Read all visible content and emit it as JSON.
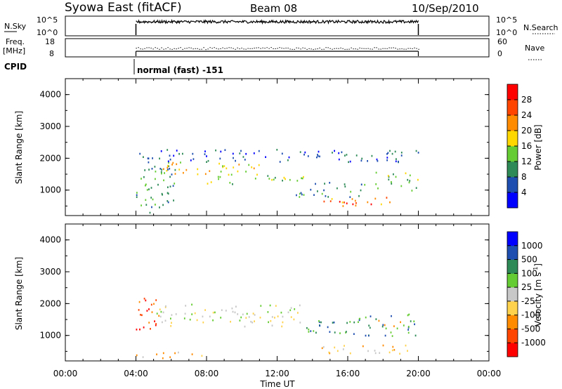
{
  "header": {
    "title": "Syowa East (fitACF)",
    "beam": "Beam 08",
    "date": "10/Sep/2010"
  },
  "status_panels": {
    "nsky_label": "N.Sky",
    "nsky_ticks": [
      "10^5",
      "10^0"
    ],
    "nsearch_label": "N.Search",
    "nsearch_ticks": [
      "10^5",
      "10^0"
    ],
    "freq_label_1": "Freq.",
    "freq_label_2": "[MHz]",
    "freq_ticks": [
      "18",
      "8"
    ],
    "nave_label": "Nave",
    "nave_ticks": [
      "60",
      "0"
    ],
    "cpid_label": "CPID",
    "cpid_text": "normal (fast) -151"
  },
  "colors": {
    "power_scale": [
      "#0000ff",
      "#1e4fb0",
      "#2e8b57",
      "#66cc33",
      "#ffd700",
      "#ff8c00",
      "#ff4500",
      "#ff0000"
    ],
    "velocity_scale": [
      "#ff0000",
      "#ff4500",
      "#ff8c00",
      "#ffd24d",
      "#c8c8c8",
      "#66cc33",
      "#2e8b57",
      "#1e4fb0",
      "#0000ff"
    ]
  },
  "chart_data": [
    {
      "type": "heatmap",
      "name": "power",
      "ylabel": "Slant Range [km]",
      "xlabel": "Time UT",
      "x_range_hours": [
        0,
        24
      ],
      "x_ticks": [
        "00:00",
        "04:00",
        "08:00",
        "12:00",
        "16:00",
        "20:00",
        "00:00"
      ],
      "ylim": [
        200,
        4500
      ],
      "y_ticks": [
        "1000",
        "2000",
        "3000",
        "4000"
      ],
      "data_time_range_hours": [
        4,
        20
      ],
      "colorbar": {
        "label": "Power [dB]",
        "range": [
          0,
          32
        ],
        "ticks": [
          "4",
          "8",
          "12",
          "16",
          "20",
          "24",
          "28"
        ]
      },
      "echo_regions": [
        {
          "t0": 4.0,
          "t1": 6.2,
          "r0": 300,
          "r1": 2300,
          "level": 2
        },
        {
          "t0": 4.0,
          "t1": 11.0,
          "r0": 1500,
          "r1": 1900,
          "level": 4
        },
        {
          "t0": 8.0,
          "t1": 13.5,
          "r0": 1200,
          "r1": 1500,
          "level": 3
        },
        {
          "t0": 13.0,
          "t1": 17.0,
          "r0": 800,
          "r1": 1300,
          "level": 2
        },
        {
          "t0": 14.5,
          "t1": 18.5,
          "r0": 500,
          "r1": 800,
          "level": 5
        },
        {
          "t0": 15.5,
          "t1": 17.5,
          "r0": 550,
          "r1": 700,
          "level": 7
        },
        {
          "t0": 17.5,
          "t1": 20.0,
          "r0": 1000,
          "r1": 1600,
          "level": 3
        },
        {
          "t0": 4.5,
          "t1": 20.0,
          "r0": 1900,
          "r1": 2300,
          "level": 1
        }
      ]
    },
    {
      "type": "heatmap",
      "name": "velocity",
      "ylabel": "Slant Range [km]",
      "xlabel": "Time UT",
      "x_range_hours": [
        0,
        24
      ],
      "x_ticks": [
        "00:00",
        "04:00",
        "08:00",
        "12:00",
        "16:00",
        "20:00",
        "00:00"
      ],
      "ylim": [
        200,
        4500
      ],
      "y_ticks": [
        "1000",
        "2000",
        "3000",
        "4000"
      ],
      "data_time_range_hours": [
        4,
        20
      ],
      "colorbar": {
        "label": "Velocity [m s^-1]",
        "ticks": [
          "1000",
          "500",
          "100",
          "25",
          "-25",
          "-100",
          "-500",
          "-1000"
        ]
      },
      "echo_regions": [
        {
          "t0": 4.0,
          "t1": 5.5,
          "r0": 1200,
          "r1": 2300,
          "level": 1
        },
        {
          "t0": 5.0,
          "t1": 13.5,
          "r0": 1300,
          "r1": 2000,
          "level": 4
        },
        {
          "t0": 4.0,
          "t1": 8.0,
          "r0": 300,
          "r1": 500,
          "level": 3
        },
        {
          "t0": 13.5,
          "t1": 16.5,
          "r0": 900,
          "r1": 1500,
          "level": 6
        },
        {
          "t0": 14.5,
          "t1": 19.5,
          "r0": 450,
          "r1": 800,
          "level": 3
        },
        {
          "t0": 16.5,
          "t1": 20.0,
          "r0": 1000,
          "r1": 1700,
          "level": 6
        },
        {
          "t0": 17.5,
          "t1": 19.0,
          "r0": 1300,
          "r1": 1500,
          "level": 1
        }
      ]
    }
  ]
}
